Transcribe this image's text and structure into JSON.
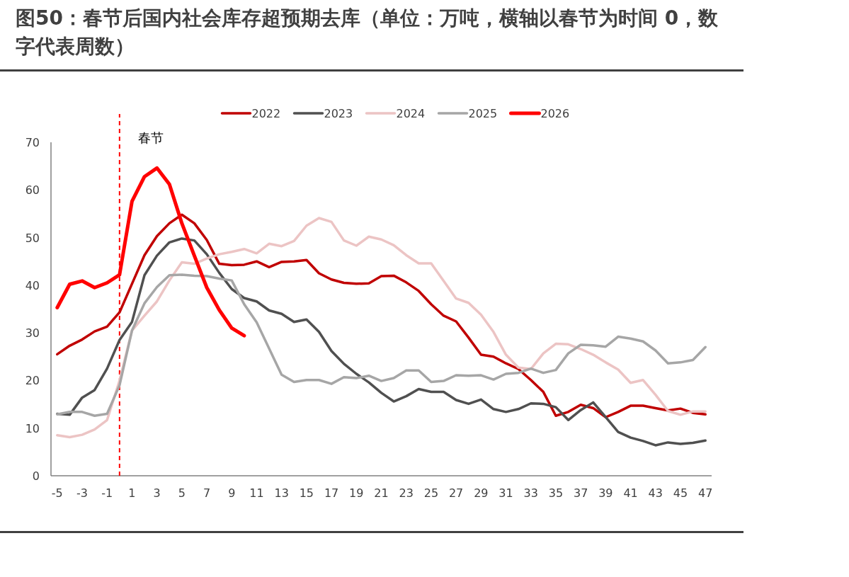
{
  "chart_data": {
    "type": "line",
    "title": "图50：春节后国内社会库存超预期去库（单位：万吨，横轴以春节为时间 0，数字代表周数）",
    "x": [
      -5,
      -4,
      -3,
      -2,
      -1,
      0,
      1,
      2,
      3,
      4,
      5,
      6,
      7,
      8,
      9,
      10,
      11,
      12,
      13,
      14,
      15,
      16,
      17,
      18,
      19,
      20,
      21,
      22,
      23,
      24,
      25,
      26,
      27,
      28,
      29,
      30,
      31,
      32,
      33,
      34,
      35,
      36,
      37,
      38,
      39,
      40,
      41,
      42,
      43,
      44,
      45,
      46,
      47
    ],
    "xlim": [
      -5.5,
      47.5
    ],
    "xticks": [
      -5,
      -3,
      -1,
      1,
      3,
      5,
      7,
      9,
      11,
      13,
      15,
      17,
      19,
      21,
      23,
      25,
      27,
      29,
      31,
      33,
      35,
      37,
      39,
      41,
      43,
      45,
      47
    ],
    "ylim": [
      0,
      70
    ],
    "yticks": [
      0,
      10,
      20,
      30,
      40,
      50,
      60,
      70
    ],
    "grid": false,
    "legend": "top",
    "ref_lines": [
      {
        "axis": "x",
        "value": 0,
        "label": "春节",
        "color": "#ff0000",
        "line_style": "dashed"
      }
    ],
    "series": [
      {
        "name": "2022",
        "color": "#c00000",
        "values": [
          25.5,
          27.3,
          28.6,
          30.3,
          31.3,
          34.3,
          40.3,
          46.3,
          50.3,
          53,
          54.8,
          53,
          49.5,
          44.5,
          44.2,
          44.3,
          45,
          43.8,
          44.9,
          45,
          45.3,
          42.5,
          41.2,
          40.5,
          40.3,
          40.4,
          41.9,
          42,
          40.6,
          38.8,
          36,
          33.6,
          32.4,
          29,
          25.4,
          25,
          23.6,
          22.4,
          20.1,
          17.6,
          12.6,
          13.4,
          14.9,
          14.2,
          12.3,
          13.4,
          14.7,
          14.7,
          14.2,
          13.7,
          14.1,
          13.2,
          12.9
        ]
      },
      {
        "name": "2023",
        "color": "#505050",
        "values": [
          13,
          12.8,
          16.4,
          18,
          22.5,
          28.5,
          32.3,
          42.1,
          46.2,
          49,
          49.8,
          49.4,
          46.5,
          42.6,
          39.2,
          37.3,
          36.6,
          34.7,
          34,
          32.3,
          32.8,
          30.2,
          26.2,
          23.5,
          21.4,
          19.6,
          17.4,
          15.6,
          16.7,
          18.2,
          17.6,
          17.6,
          15.9,
          15.1,
          16,
          14,
          13.4,
          14,
          15.2,
          15.1,
          14.4,
          11.7,
          13.8,
          15.4,
          12.3,
          9.2,
          8,
          7.3,
          6.4,
          7,
          6.7,
          6.9,
          7.4
        ]
      },
      {
        "name": "2024",
        "color": "#ecc4c4",
        "values": [
          8.5,
          8.1,
          8.6,
          9.7,
          11.7,
          20,
          30.5,
          33.6,
          36.6,
          41,
          44.8,
          44.5,
          45.6,
          46.5,
          47,
          47.6,
          46.7,
          48.7,
          48.2,
          49.3,
          52.5,
          54.1,
          53.3,
          49.4,
          48.3,
          50.2,
          49.6,
          48.4,
          46.3,
          44.6,
          44.6,
          40.9,
          37.2,
          36.3,
          33.8,
          30.2,
          25.4,
          22.7,
          22.4,
          25.7,
          27.7,
          27.6,
          26.6,
          25.4,
          23.8,
          22.3,
          19.5,
          20.1,
          17,
          13.6,
          12.8,
          13.5,
          13.5
        ]
      },
      {
        "name": "2025",
        "color": "#a6a6a6",
        "values": [
          12.9,
          13.4,
          13.4,
          12.6,
          13,
          19,
          30.5,
          36.2,
          39.6,
          42.1,
          42.2,
          42,
          41.9,
          41.4,
          41,
          36,
          32.2,
          26.7,
          21.2,
          19.7,
          20.1,
          20.1,
          19.3,
          20.7,
          20.5,
          21,
          19.9,
          20.5,
          22.1,
          22.1,
          19.7,
          19.9,
          21.1,
          21,
          21.1,
          20.2,
          21.4,
          21.6,
          22.5,
          21.6,
          22.2,
          25.7,
          27.5,
          27.4,
          27.1,
          29.2,
          28.8,
          28.2,
          26.3,
          23.6,
          23.8,
          24.3,
          27
        ]
      },
      {
        "name": "2026",
        "color": "#ff0000",
        "x": [
          -5,
          -4,
          -3,
          -2,
          -1,
          0,
          1,
          2,
          3,
          4,
          5,
          6,
          7,
          8,
          9,
          10
        ],
        "values": [
          35.3,
          40.2,
          40.9,
          39.5,
          40.5,
          42.2,
          57.6,
          62.8,
          64.6,
          61.2,
          53,
          46.2,
          39.5,
          34.8,
          31,
          29.4
        ]
      }
    ]
  }
}
